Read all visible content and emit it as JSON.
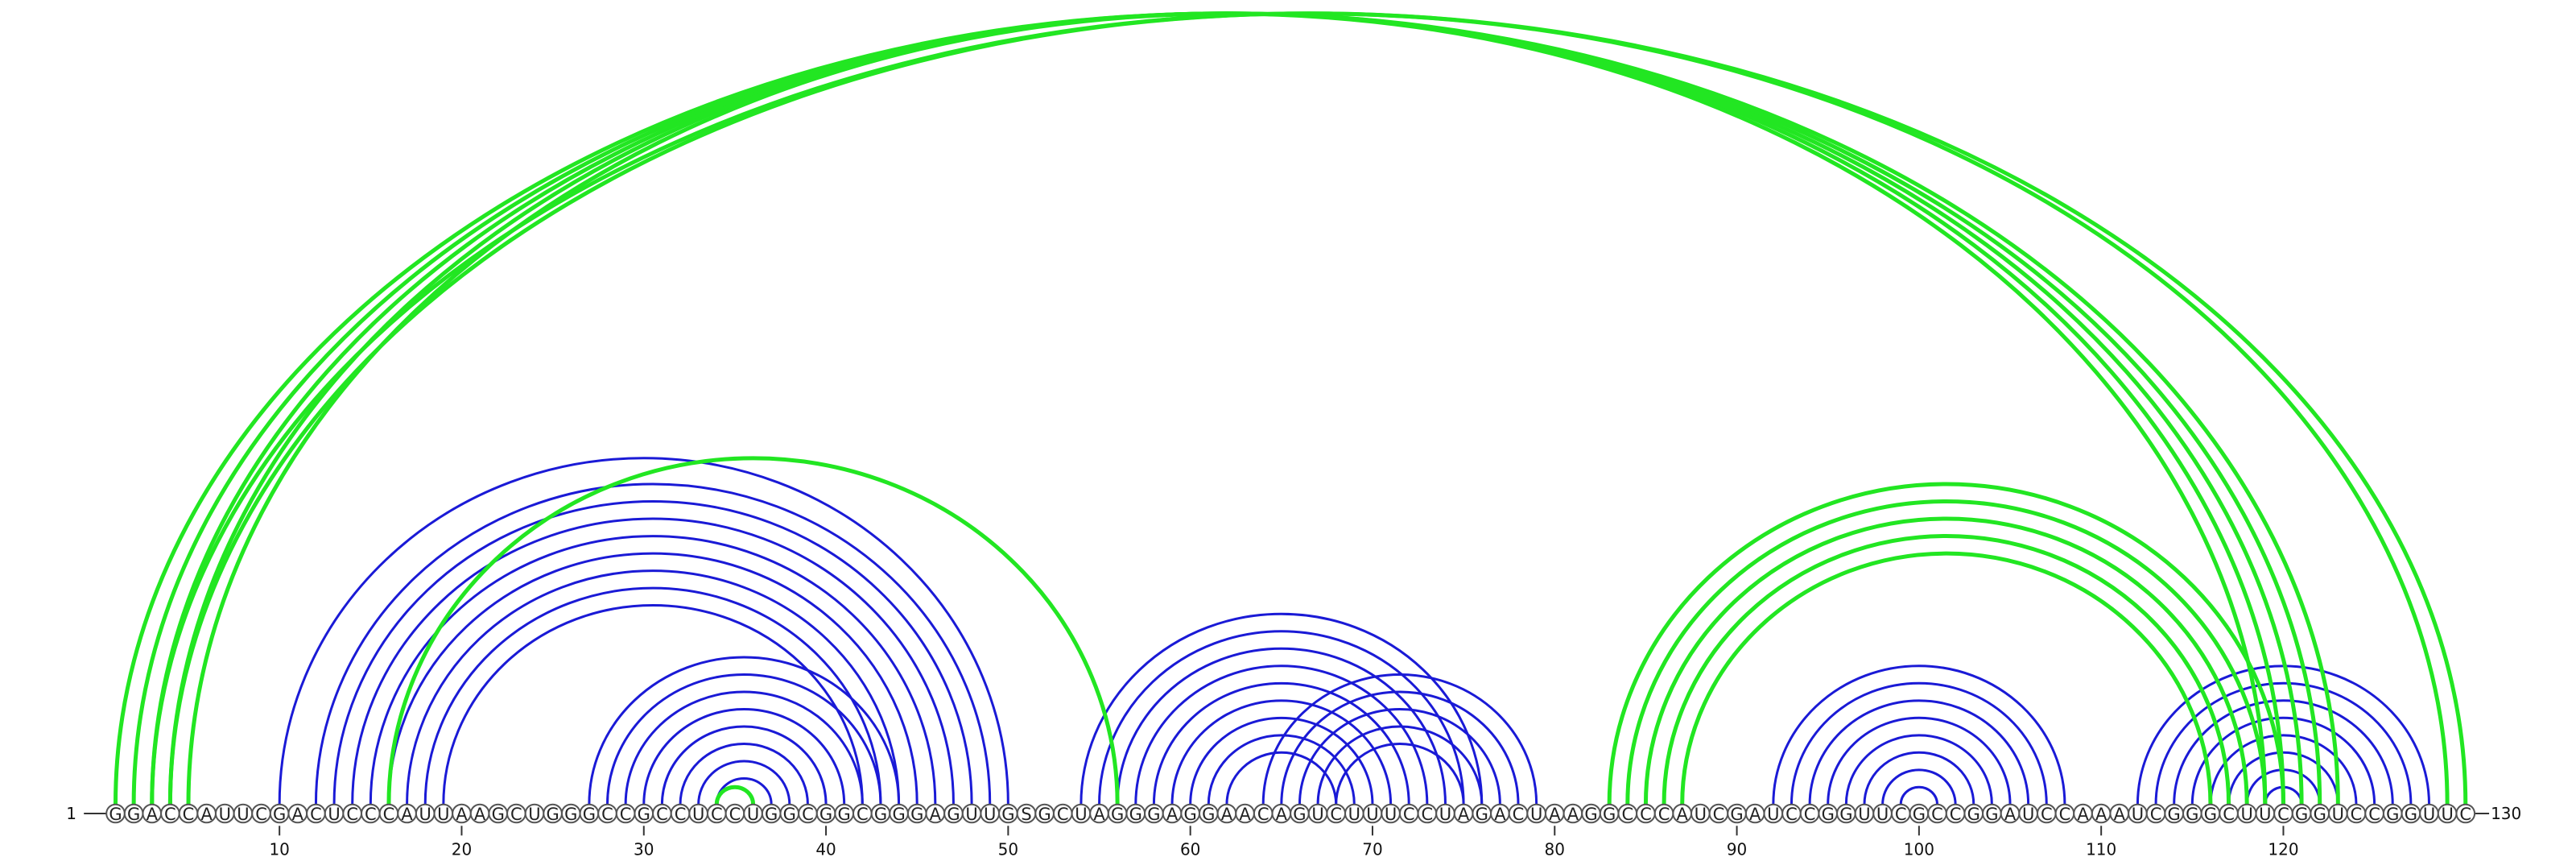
{
  "sequence": "GGACCAUUCGACUCCCAUUAAGCUGGGCCGCCUCCUGGCGGCGGGAGUUGSGCUAGGGAGGAACAGUCUUUCCUAGACUAAGGCCCAUCGAUCCGGUUCGCCGGAUCCAAAUCGGGCUUCGGUCCGGUUC",
  "start_label": "1",
  "end_label": "130",
  "tick_labels": [
    "10",
    "20",
    "30",
    "40",
    "50",
    "60",
    "70",
    "80",
    "90",
    "100",
    "110",
    "120"
  ],
  "colors": {
    "blue_arcs": "#1a1ad6",
    "green_arcs": "#22e622"
  },
  "blue_pairs": [
    [
      10,
      50
    ],
    [
      12,
      49
    ],
    [
      13,
      48
    ],
    [
      14,
      47
    ],
    [
      15,
      46
    ],
    [
      16,
      45
    ],
    [
      17,
      44
    ],
    [
      18,
      43
    ],
    [
      19,
      42
    ],
    [
      27,
      44
    ],
    [
      28,
      43
    ],
    [
      29,
      42
    ],
    [
      30,
      41
    ],
    [
      31,
      40
    ],
    [
      32,
      39
    ],
    [
      33,
      38
    ],
    [
      34,
      37
    ],
    [
      54,
      76
    ],
    [
      55,
      75
    ],
    [
      56,
      74
    ],
    [
      57,
      73
    ],
    [
      58,
      72
    ],
    [
      59,
      71
    ],
    [
      60,
      70
    ],
    [
      61,
      69
    ],
    [
      62,
      68
    ],
    [
      64,
      79
    ],
    [
      65,
      78
    ],
    [
      66,
      77
    ],
    [
      67,
      76
    ],
    [
      68,
      75
    ],
    [
      92,
      108
    ],
    [
      93,
      107
    ],
    [
      94,
      106
    ],
    [
      95,
      105
    ],
    [
      96,
      104
    ],
    [
      97,
      103
    ],
    [
      98,
      102
    ],
    [
      99,
      101
    ],
    [
      112,
      128
    ],
    [
      113,
      127
    ],
    [
      114,
      126
    ],
    [
      115,
      125
    ],
    [
      116,
      124
    ],
    [
      117,
      123
    ],
    [
      118,
      122
    ],
    [
      119,
      121
    ]
  ],
  "green_pairs": [
    [
      1,
      123
    ],
    [
      2,
      122
    ],
    [
      3,
      121
    ],
    [
      4,
      120
    ],
    [
      5,
      119
    ],
    [
      3,
      130
    ],
    [
      4,
      129
    ],
    [
      16,
      56
    ],
    [
      34,
      36
    ],
    [
      83,
      120
    ],
    [
      84,
      119
    ],
    [
      85,
      118
    ],
    [
      86,
      117
    ],
    [
      87,
      116
    ]
  ]
}
